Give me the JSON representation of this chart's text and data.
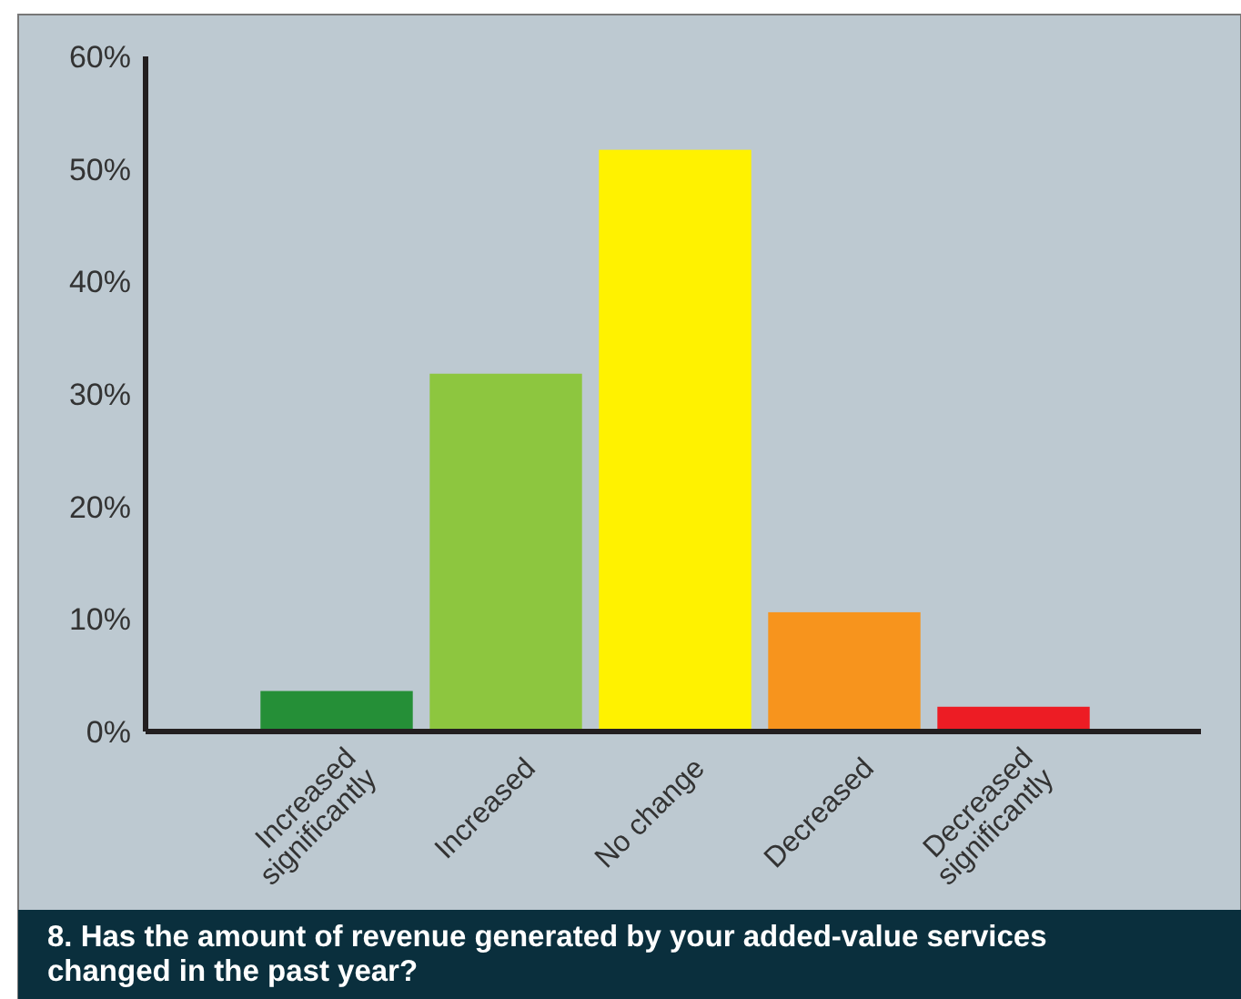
{
  "chart_data": {
    "type": "bar",
    "title": "8. Has the amount of revenue generated by your added-value services changed in the past year?",
    "categories": [
      "Increased significantly",
      "Increased",
      "No change",
      "Decreased",
      "Decreased significantly"
    ],
    "values": [
      3.6,
      31.8,
      51.7,
      10.6,
      2.2
    ],
    "colors": [
      "#258f37",
      "#8dc63f",
      "#fff200",
      "#f7941d",
      "#ed1c24"
    ],
    "ylim": [
      0,
      60
    ],
    "yticks": [
      {
        "value": 0,
        "label": "0%"
      },
      {
        "value": 10,
        "label": "10%"
      },
      {
        "value": 20,
        "label": "20%"
      },
      {
        "value": 30,
        "label": "30%"
      },
      {
        "value": 40,
        "label": "40%"
      },
      {
        "value": 50,
        "label": "50%"
      },
      {
        "value": 60,
        "label": "60%"
      }
    ],
    "grid": false
  }
}
